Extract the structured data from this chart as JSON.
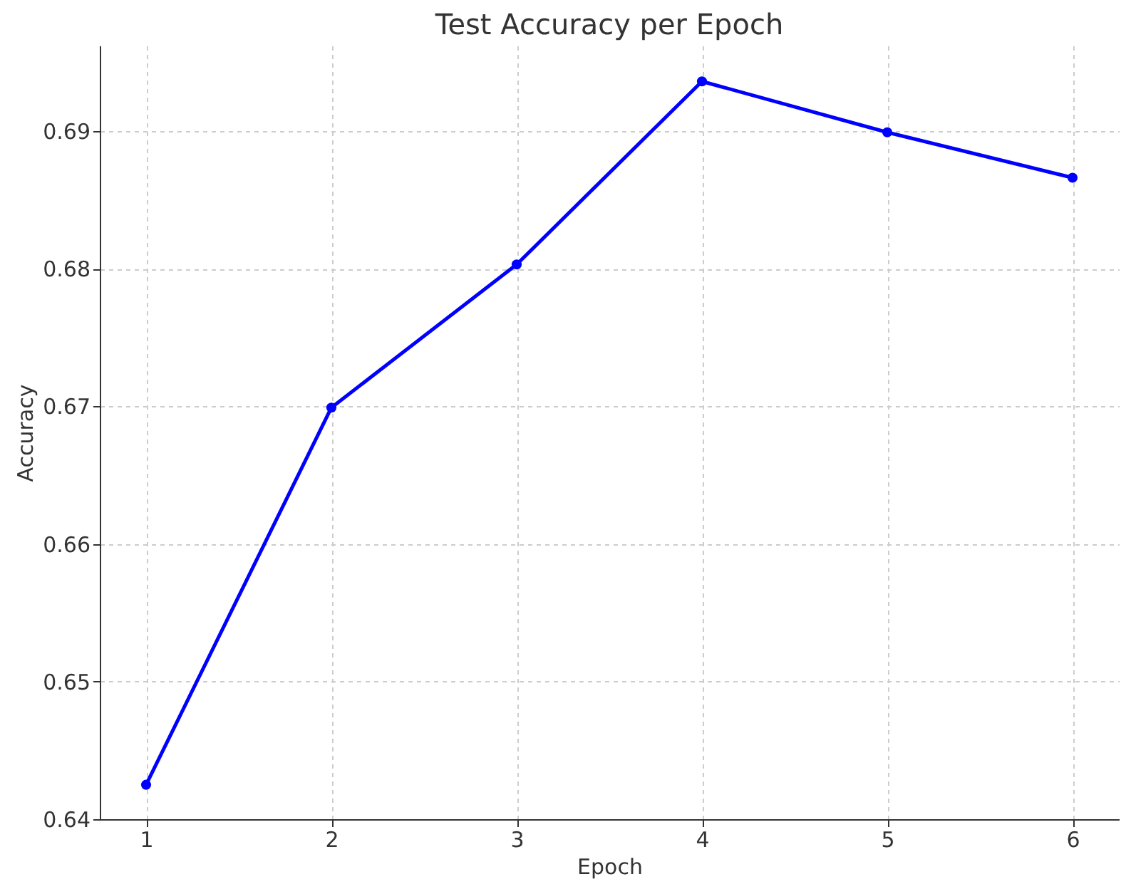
{
  "chart_data": {
    "type": "line",
    "title": "Test Accuracy per Epoch",
    "xlabel": "Epoch",
    "ylabel": "Accuracy",
    "x": [
      1,
      2,
      3,
      4,
      5,
      6
    ],
    "series": [
      {
        "color": "#0000ff",
        "values": [
          0.6425,
          0.6699,
          0.6803,
          0.6936,
          0.6899,
          0.6866
        ]
      }
    ],
    "xlim": [
      0.75,
      6.25
    ],
    "xticks": [
      1,
      2,
      3,
      4,
      5,
      6
    ],
    "ylim": [
      0.64,
      0.6962
    ],
    "yticks": [
      0.64,
      0.65,
      0.66,
      0.67,
      0.68,
      0.69
    ],
    "grid": true,
    "marker": "circle",
    "line_style": "solid"
  }
}
